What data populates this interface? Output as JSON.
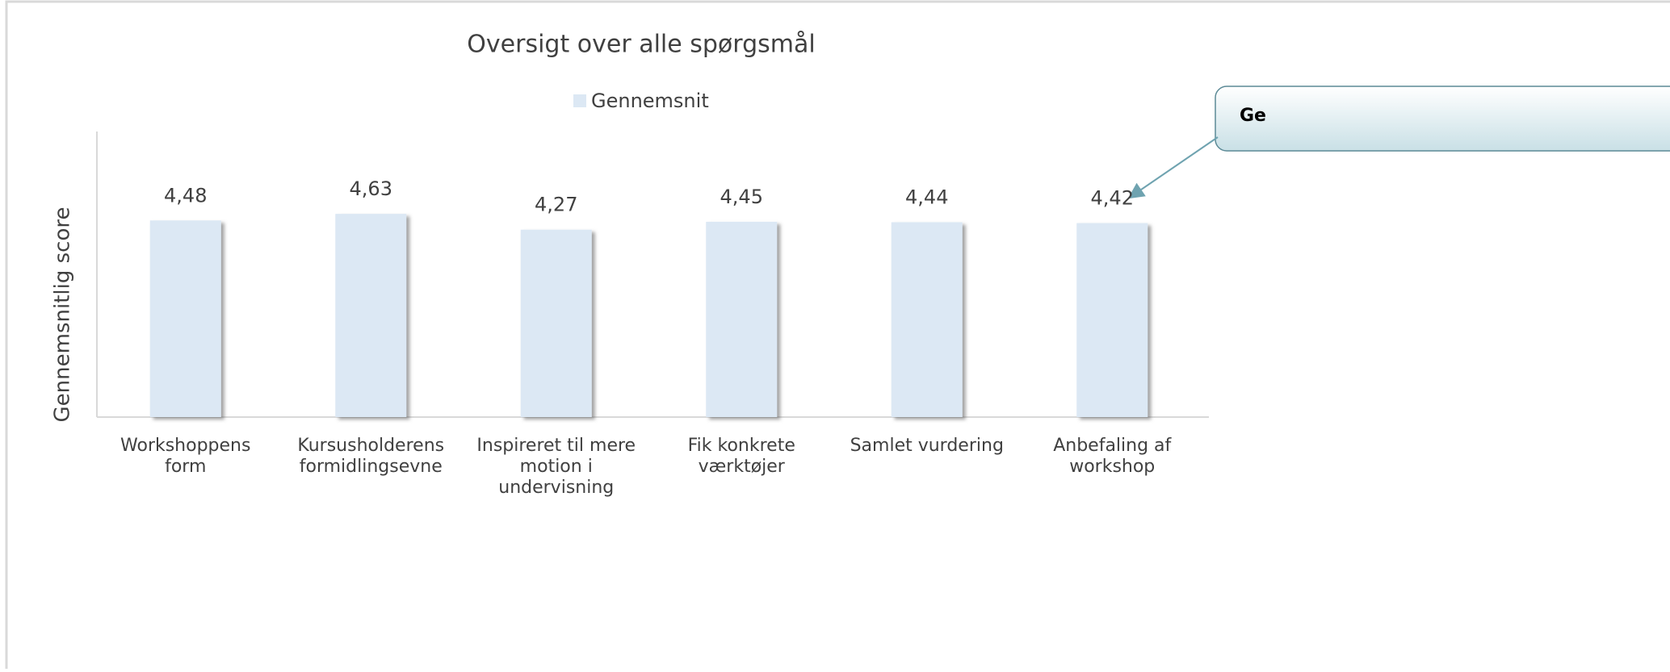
{
  "chart_data": {
    "type": "bar",
    "title": "Oversigt over alle spørgsmål",
    "y_label": "Gennemsnitlig score",
    "categories": [
      "Workshoppens\nform",
      "Kursusholderens\nformidlingsevne",
      "Inspireret til mere\nmotion i\nundervisning",
      "Fik konkrete\nværktøjer",
      "Samlet vurdering",
      "Anbefaling af\nworkshop"
    ],
    "series": [
      {
        "name": "Gennemsnit",
        "color": "#dce8f4",
        "values": [
          4.48,
          4.63,
          4.27,
          4.45,
          4.44,
          4.42
        ],
        "value_labels": [
          "4,48",
          "4,63",
          "4,27",
          "4,45",
          "4,44",
          "4,42"
        ]
      }
    ],
    "ylim": [
      0,
      5
    ],
    "annotation": "Ge"
  }
}
